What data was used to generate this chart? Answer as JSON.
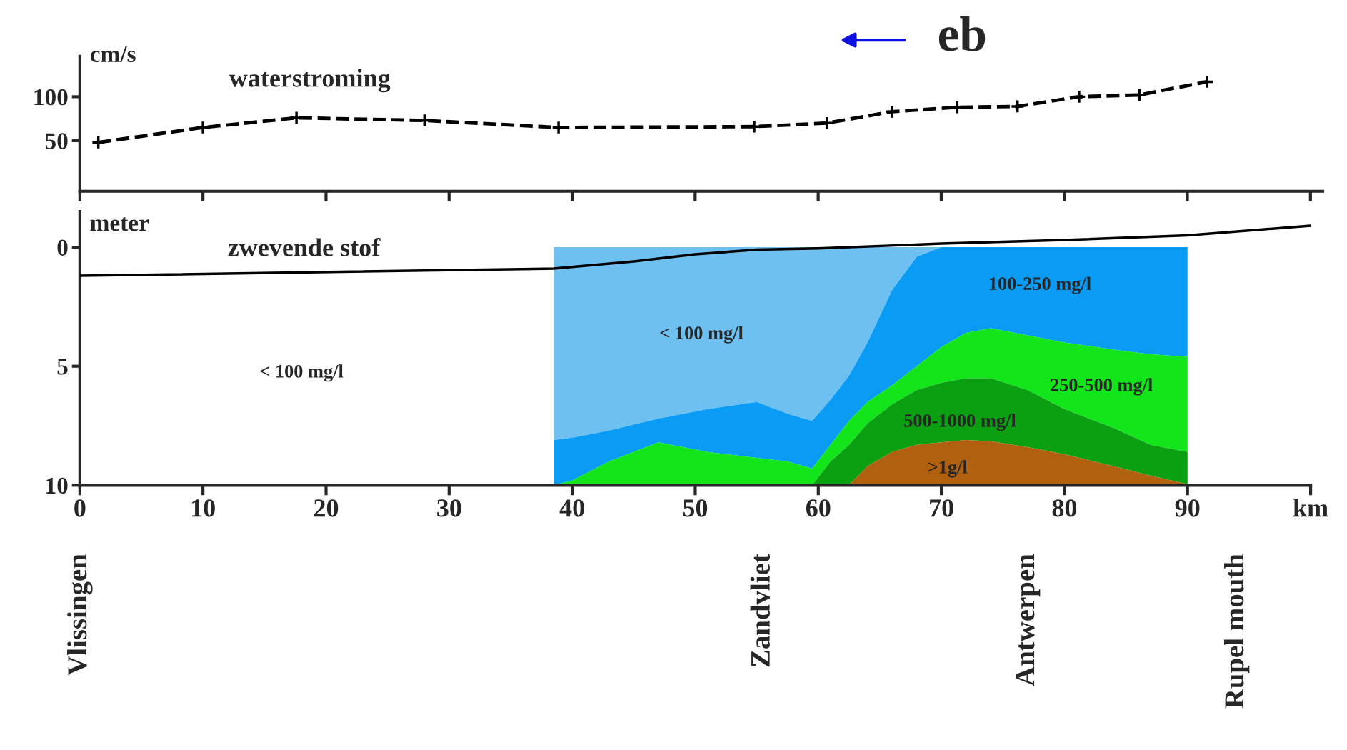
{
  "chart_data": [
    {
      "type": "line",
      "title": "waterstroming",
      "ylabel": "cm/s",
      "xlim": [
        0,
        101
      ],
      "ylim": [
        -7.5,
        146
      ],
      "yticks": [
        50,
        100
      ],
      "xticks": [
        0,
        10,
        20,
        30,
        40,
        50,
        60,
        70,
        80,
        90,
        {
          "value": 100,
          "label": null
        }
      ],
      "tick_labels": "y",
      "marker": "cross",
      "line_style": "dashed",
      "grid": false,
      "series": [
        {
          "color": "#000000",
          "x": [
            1.5,
            10,
            17.6,
            28,
            38.9,
            54.8,
            60.7,
            66,
            71.3,
            76.2,
            81.2,
            86.1,
            91.6
          ],
          "values": [
            48,
            65,
            76,
            73,
            65,
            66,
            70,
            83,
            88,
            89,
            100,
            102,
            117
          ]
        }
      ],
      "annotations": [
        "eb"
      ]
    },
    {
      "type": "area",
      "title": "zwevende stof",
      "ylabel": "meter",
      "xlim": [
        0,
        100
      ],
      "ylim": [
        10,
        -1.5
      ],
      "yticks": [
        0,
        5,
        10
      ],
      "xticks": [
        0,
        10,
        20,
        30,
        40,
        50,
        60,
        70,
        80,
        90,
        {
          "value": 100,
          "label": "km"
        }
      ],
      "grid": false,
      "stacked": true,
      "x": [
        38.5,
        40,
        43,
        47,
        51,
        55,
        57.5,
        59.5,
        61,
        62.5,
        64,
        66,
        68,
        70,
        72,
        74,
        77,
        80,
        84,
        87,
        90
      ],
      "series": [
        {
          "color": "#6ec0f0",
          "values": [
            8.1,
            8.0,
            7.7,
            7.2,
            6.8,
            6.5,
            7.0,
            7.3,
            6.4,
            5.4,
            4.0,
            1.8,
            0.4,
            0,
            0,
            0,
            0,
            0,
            0,
            0,
            0
          ]
        },
        {
          "color": "#0a9cf5",
          "values": [
            1.9,
            1.8,
            1.3,
            1.0,
            1.8,
            2.35,
            2.0,
            2.0,
            1.9,
            1.9,
            2.5,
            4.0,
            4.6,
            4.2,
            3.6,
            3.4,
            3.7,
            4.0,
            4.3,
            4.5,
            4.6
          ]
        },
        {
          "color": "#12e61a",
          "values": [
            0,
            0.2,
            1.0,
            1.8,
            1.4,
            1.15,
            1.0,
            0.7,
            0.7,
            1.0,
            0.9,
            0.8,
            1.0,
            1.5,
            1.9,
            2.1,
            2.3,
            2.8,
            3.3,
            3.8,
            4.0
          ]
        },
        {
          "color": "#0aa012",
          "values": [
            0,
            0,
            0,
            0,
            0,
            0,
            0,
            0,
            1.0,
            1.7,
            1.8,
            2.0,
            2.3,
            2.5,
            2.6,
            2.65,
            2.4,
            1.9,
            1.6,
            1.3,
            1.35
          ]
        },
        {
          "color": "#b0600e",
          "values": [
            0,
            0,
            0,
            0,
            0,
            0,
            0,
            0,
            0,
            0,
            0.8,
            1.4,
            1.7,
            1.8,
            1.9,
            1.85,
            1.6,
            1.3,
            0.8,
            0.4,
            0.05
          ]
        },
        {
          "type": "line",
          "color": "#000000",
          "x": [
            0,
            38.5,
            45,
            50,
            55,
            60,
            70,
            80,
            90,
            100
          ],
          "values": [
            1.2,
            0.9,
            0.6,
            0.3,
            0.1,
            0.05,
            -0.15,
            -0.3,
            -0.5,
            -0.9
          ]
        }
      ],
      "annotations": [
        "< 100 mg/l",
        "< 100 mg/l",
        "100-250 mg/l",
        "250-500 mg/l",
        "500-1000 mg/l",
        ">1g/l",
        "Vlissingen",
        "Zandvliet",
        "Antwerpen",
        "Rupel mouth"
      ]
    }
  ]
}
